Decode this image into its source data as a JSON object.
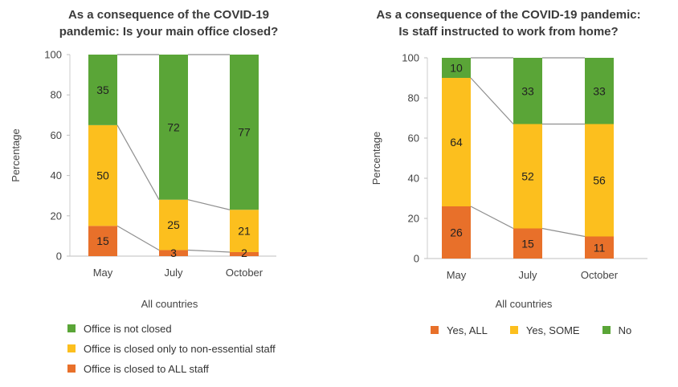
{
  "chart_data": [
    {
      "type": "bar",
      "stacked": true,
      "title_lines": [
        "As a consequence of the COVID-19",
        "pandemic: Is your main office closed?"
      ],
      "categories": [
        "May",
        "July",
        "October"
      ],
      "xlabel": "All countries",
      "ylabel": "Percentage",
      "ylim": [
        0,
        100
      ],
      "yticks": [
        0,
        20,
        40,
        60,
        80,
        100
      ],
      "series": [
        {
          "name": "Office is closed to ALL staff",
          "color": "#e8702a",
          "values": [
            15,
            3,
            2
          ]
        },
        {
          "name": "Office is closed only to non-essential staff",
          "color": "#fcbf1e",
          "values": [
            50,
            25,
            21
          ]
        },
        {
          "name": "Office is not closed",
          "color": "#5aa537",
          "values": [
            35,
            72,
            77
          ]
        }
      ],
      "legend_order": [
        2,
        1,
        0
      ],
      "legend_placement": "bottom-left-vertical"
    },
    {
      "type": "bar",
      "stacked": true,
      "title_lines": [
        "As a consequence of the COVID-19 pandemic:",
        "Is staff instructed to work from home?"
      ],
      "categories": [
        "May",
        "July",
        "October"
      ],
      "xlabel": "All countries",
      "ylabel": "Percentage",
      "ylim": [
        0,
        100
      ],
      "yticks": [
        0,
        20,
        40,
        60,
        80,
        100
      ],
      "series": [
        {
          "name": "Yes, ALL",
          "color": "#e8702a",
          "values": [
            26,
            15,
            11
          ]
        },
        {
          "name": "Yes, SOME",
          "color": "#fcbf1e",
          "values": [
            64,
            52,
            56
          ]
        },
        {
          "name": "No",
          "color": "#5aa537",
          "values": [
            10,
            33,
            33
          ]
        }
      ],
      "legend_order": [
        0,
        1,
        2
      ],
      "legend_placement": "bottom-center-horizontal"
    }
  ]
}
